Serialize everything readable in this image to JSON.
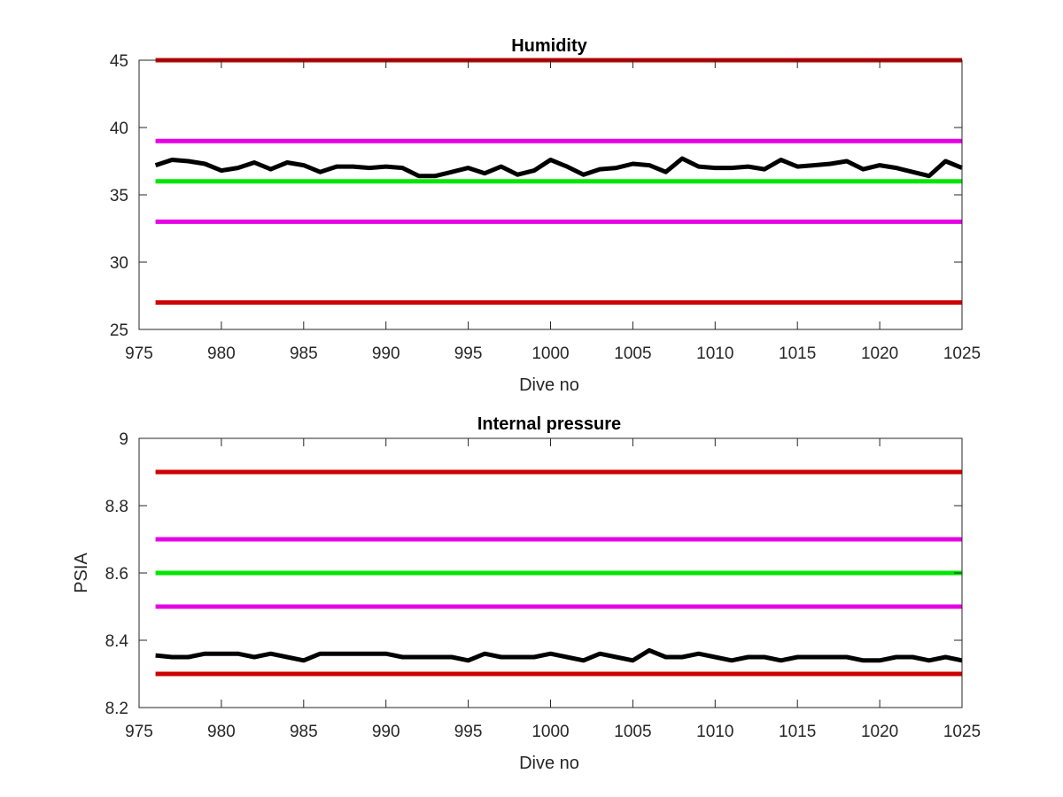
{
  "chart_data": [
    {
      "type": "line",
      "title": "Humidity",
      "xlabel": "Dive no",
      "ylabel": "",
      "xlim": [
        975,
        1025
      ],
      "ylim": [
        25,
        45
      ],
      "x_ticks": [
        975,
        980,
        985,
        990,
        995,
        1000,
        1005,
        1010,
        1015,
        1020,
        1025
      ],
      "y_ticks": [
        25,
        30,
        35,
        40,
        45
      ],
      "grid": false,
      "reference_lines": [
        {
          "y": 45,
          "color": "#cc0000"
        },
        {
          "y": 39,
          "color": "#e600e6"
        },
        {
          "y": 36,
          "color": "#00e600"
        },
        {
          "y": 33,
          "color": "#e600e6"
        },
        {
          "y": 27,
          "color": "#cc0000"
        }
      ],
      "series": [
        {
          "color": "#000000",
          "x": [
            976,
            977,
            978,
            979,
            980,
            981,
            982,
            983,
            984,
            985,
            986,
            987,
            988,
            989,
            990,
            991,
            992,
            993,
            994,
            995,
            996,
            997,
            998,
            999,
            1000,
            1001,
            1002,
            1003,
            1004,
            1005,
            1006,
            1007,
            1008,
            1009,
            1010,
            1011,
            1012,
            1013,
            1014,
            1015,
            1016,
            1017,
            1018,
            1019,
            1020,
            1021,
            1022,
            1023,
            1024,
            1025
          ],
          "y": [
            37.2,
            37.6,
            37.5,
            37.3,
            36.8,
            37.0,
            37.4,
            36.9,
            37.4,
            37.2,
            36.7,
            37.1,
            37.1,
            37.0,
            37.1,
            37.0,
            36.4,
            36.4,
            36.7,
            37.0,
            36.6,
            37.1,
            36.5,
            36.8,
            37.6,
            37.1,
            36.5,
            36.9,
            37.0,
            37.3,
            37.2,
            36.7,
            37.7,
            37.1,
            37.0,
            37.0,
            37.1,
            36.9,
            37.6,
            37.1,
            37.2,
            37.3,
            37.5,
            36.9,
            37.2,
            37.0,
            36.7,
            36.4,
            37.5,
            37.0
          ]
        }
      ]
    },
    {
      "type": "line",
      "title": "Internal pressure",
      "xlabel": "Dive no",
      "ylabel": "PSIA",
      "xlim": [
        975,
        1025
      ],
      "ylim": [
        8.2,
        9
      ],
      "x_ticks": [
        975,
        980,
        985,
        990,
        995,
        1000,
        1005,
        1010,
        1015,
        1020,
        1025
      ],
      "y_ticks": [
        "8.2",
        "8.4",
        "8.6",
        "8.8",
        "9"
      ],
      "grid": false,
      "reference_lines": [
        {
          "y": 8.9,
          "color": "#cc0000"
        },
        {
          "y": 8.7,
          "color": "#e600e6"
        },
        {
          "y": 8.6,
          "color": "#00e600"
        },
        {
          "y": 8.5,
          "color": "#e600e6"
        },
        {
          "y": 8.3,
          "color": "#cc0000"
        }
      ],
      "series": [
        {
          "color": "#000000",
          "x": [
            976,
            977,
            978,
            979,
            980,
            981,
            982,
            983,
            984,
            985,
            986,
            987,
            988,
            989,
            990,
            991,
            992,
            993,
            994,
            995,
            996,
            997,
            998,
            999,
            1000,
            1001,
            1002,
            1003,
            1004,
            1005,
            1006,
            1007,
            1008,
            1009,
            1010,
            1011,
            1012,
            1013,
            1014,
            1015,
            1016,
            1017,
            1018,
            1019,
            1020,
            1021,
            1022,
            1023,
            1024,
            1025
          ],
          "y": [
            8.355,
            8.35,
            8.35,
            8.36,
            8.36,
            8.36,
            8.35,
            8.36,
            8.35,
            8.34,
            8.36,
            8.36,
            8.36,
            8.36,
            8.36,
            8.35,
            8.35,
            8.35,
            8.35,
            8.34,
            8.36,
            8.35,
            8.35,
            8.35,
            8.36,
            8.35,
            8.34,
            8.36,
            8.35,
            8.34,
            8.37,
            8.35,
            8.35,
            8.36,
            8.35,
            8.34,
            8.35,
            8.35,
            8.34,
            8.35,
            8.35,
            8.35,
            8.35,
            8.34,
            8.34,
            8.35,
            8.35,
            8.34,
            8.35,
            8.34
          ]
        }
      ]
    }
  ]
}
